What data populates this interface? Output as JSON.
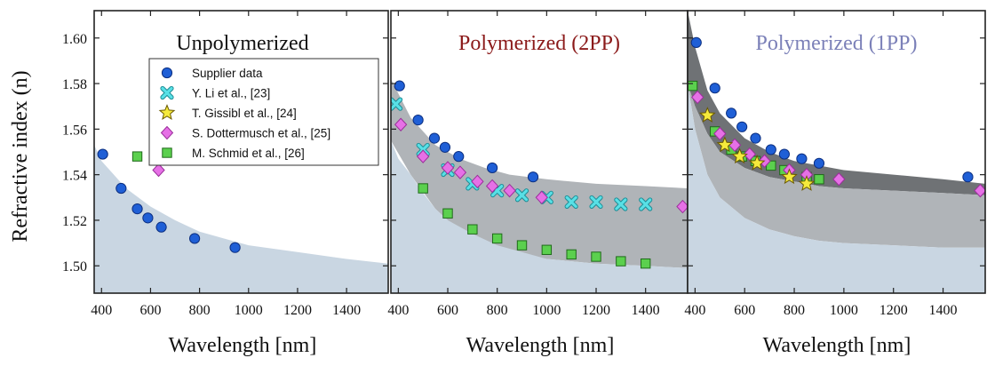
{
  "figure": {
    "ylabel": "Refractive index (n)",
    "xlabel": "Wavelength [nm]"
  },
  "colors": {
    "band_light": "#c9d6e2",
    "band_mid": "#b0b4b8",
    "band_dark": "#6f7275",
    "supplier": "#1f5fd6",
    "li": "#58e0e6",
    "gissibl": "#f5ea3c",
    "dottermusch": "#e670e6",
    "schmid": "#5bd04e",
    "title_unpoly": "#111111",
    "title_2pp": "#8b1a1a",
    "title_1pp": "#7b80b8"
  },
  "legend": {
    "placement": "upper-left of first panel",
    "entries": [
      {
        "key": "supplier",
        "marker": "circle",
        "label": "Supplier data"
      },
      {
        "key": "li",
        "marker": "x",
        "label": "Y. Li et al., [23]"
      },
      {
        "key": "gissibl",
        "marker": "star",
        "label": "T. Gissibl et al., [24]"
      },
      {
        "key": "dottermusch",
        "marker": "diamond",
        "label": "S. Dottermusch et al., [25]"
      },
      {
        "key": "schmid",
        "marker": "square",
        "label": "M. Schmid et al., [26]"
      }
    ]
  },
  "chart_data": [
    {
      "type": "scatter",
      "title": "Unpolymerized",
      "title_color_key": "title_unpoly",
      "xlim": [
        370,
        1570
      ],
      "ylim": [
        1.488,
        1.612
      ],
      "xticks": [
        400,
        600,
        800,
        1000,
        1200,
        1400
      ],
      "yticks": [
        1.5,
        1.52,
        1.54,
        1.56,
        1.58,
        1.6
      ],
      "bands": [
        {
          "color_key": "band_light",
          "x": [
            370,
            400,
            500,
            600,
            700,
            800,
            900,
            1000,
            1200,
            1400,
            1570
          ],
          "upper": [
            1.553,
            1.546,
            1.534,
            1.526,
            1.52,
            1.515,
            1.512,
            1.509,
            1.506,
            1.503,
            1.501
          ],
          "lower": [
            1.488,
            1.488,
            1.488,
            1.488,
            1.488,
            1.488,
            1.488,
            1.488,
            1.488,
            1.488,
            1.488
          ]
        }
      ],
      "series": [
        {
          "name": "Supplier data",
          "key": "supplier",
          "marker": "circle",
          "x": [
            405,
            480,
            546,
            589,
            644,
            780,
            945
          ],
          "y": [
            1.549,
            1.534,
            1.525,
            1.521,
            1.517,
            1.512,
            1.508
          ]
        },
        {
          "name": "S. Dottermusch et al., [25]",
          "key": "dottermusch",
          "marker": "diamond",
          "x": [
            633
          ],
          "y": [
            1.542
          ]
        },
        {
          "name": "M. Schmid et al., [26]",
          "key": "schmid",
          "marker": "square",
          "x": [
            546
          ],
          "y": [
            1.548
          ]
        }
      ]
    },
    {
      "type": "scatter",
      "title": "Polymerized (2PP)",
      "title_color_key": "title_2pp",
      "xlim": [
        370,
        1570
      ],
      "ylim": [
        1.488,
        1.612
      ],
      "xticks": [
        400,
        600,
        800,
        1000,
        1200,
        1400
      ],
      "yticks": [
        1.5,
        1.52,
        1.54,
        1.56,
        1.58,
        1.6
      ],
      "bands": [
        {
          "color_key": "band_mid",
          "x": [
            370,
            450,
            550,
            650,
            750,
            850,
            1000,
            1200,
            1400,
            1570
          ],
          "upper": [
            1.582,
            1.565,
            1.553,
            1.547,
            1.543,
            1.54,
            1.538,
            1.536,
            1.535,
            1.534
          ],
          "lower": [
            1.555,
            1.54,
            1.525,
            1.515,
            1.51,
            1.506,
            1.503,
            1.501,
            1.5,
            1.499
          ]
        },
        {
          "color_key": "band_light",
          "x": [
            370,
            400,
            450,
            500,
            550,
            600,
            700,
            800,
            900,
            1000,
            1200,
            1400,
            1570
          ],
          "upper": [
            1.555,
            1.547,
            1.54,
            1.532,
            1.525,
            1.52,
            1.514,
            1.509,
            1.506,
            1.503,
            1.501,
            1.5,
            1.499
          ],
          "lower": [
            1.488,
            1.488,
            1.488,
            1.488,
            1.488,
            1.488,
            1.488,
            1.488,
            1.488,
            1.488,
            1.488,
            1.488,
            1.488
          ]
        }
      ],
      "series": [
        {
          "name": "Supplier data",
          "key": "supplier",
          "marker": "circle",
          "x": [
            405,
            480,
            546,
            589,
            644,
            780,
            945
          ],
          "y": [
            1.579,
            1.564,
            1.556,
            1.552,
            1.548,
            1.543,
            1.539
          ]
        },
        {
          "name": "Y. Li et al., [23]",
          "key": "li",
          "marker": "x",
          "x": [
            390,
            500,
            600,
            700,
            800,
            900,
            1000,
            1100,
            1200,
            1300,
            1400
          ],
          "y": [
            1.571,
            1.551,
            1.542,
            1.536,
            1.533,
            1.531,
            1.53,
            1.528,
            1.528,
            1.527,
            1.527
          ]
        },
        {
          "name": "S. Dottermusch et al., [25]",
          "key": "dottermusch",
          "marker": "diamond",
          "x": [
            410,
            500,
            600,
            650,
            720,
            780,
            850,
            980,
            1550
          ],
          "y": [
            1.562,
            1.548,
            1.543,
            1.541,
            1.537,
            1.535,
            1.533,
            1.53,
            1.526
          ]
        },
        {
          "name": "M. Schmid et al., [26]",
          "key": "schmid",
          "marker": "square",
          "x": [
            500,
            600,
            700,
            800,
            900,
            1000,
            1100,
            1200,
            1300,
            1400
          ],
          "y": [
            1.534,
            1.523,
            1.516,
            1.512,
            1.509,
            1.507,
            1.505,
            1.504,
            1.502,
            1.501
          ]
        }
      ]
    },
    {
      "type": "scatter",
      "title": "Polymerized (1PP)",
      "title_color_key": "title_1pp",
      "xlim": [
        370,
        1570
      ],
      "ylim": [
        1.488,
        1.612
      ],
      "xticks": [
        400,
        600,
        800,
        1000,
        1200,
        1400
      ],
      "yticks": [
        1.5,
        1.52,
        1.54,
        1.56,
        1.58,
        1.6
      ],
      "bands": [
        {
          "color_key": "band_dark",
          "x": [
            370,
            400,
            450,
            500,
            600,
            700,
            800,
            900,
            1000,
            1200,
            1400,
            1570
          ],
          "upper": [
            1.612,
            1.596,
            1.577,
            1.567,
            1.556,
            1.55,
            1.546,
            1.544,
            1.542,
            1.54,
            1.538,
            1.536
          ],
          "lower": [
            1.58,
            1.57,
            1.558,
            1.55,
            1.543,
            1.539,
            1.537,
            1.535,
            1.534,
            1.533,
            1.532,
            1.531
          ]
        },
        {
          "color_key": "band_mid",
          "x": [
            370,
            400,
            450,
            500,
            600,
            700,
            800,
            900,
            1000,
            1200,
            1400,
            1570
          ],
          "upper": [
            1.58,
            1.57,
            1.558,
            1.55,
            1.543,
            1.539,
            1.537,
            1.535,
            1.534,
            1.533,
            1.532,
            1.531
          ],
          "lower": [
            1.58,
            1.56,
            1.54,
            1.53,
            1.521,
            1.516,
            1.513,
            1.511,
            1.51,
            1.509,
            1.508,
            1.508
          ]
        },
        {
          "color_key": "band_light",
          "x": [
            370,
            400,
            450,
            500,
            600,
            700,
            800,
            900,
            1000,
            1200,
            1400,
            1570
          ],
          "upper": [
            1.58,
            1.56,
            1.54,
            1.53,
            1.521,
            1.516,
            1.513,
            1.511,
            1.51,
            1.509,
            1.508,
            1.508
          ],
          "lower": [
            1.488,
            1.488,
            1.488,
            1.488,
            1.488,
            1.488,
            1.488,
            1.488,
            1.488,
            1.488,
            1.488,
            1.488
          ]
        }
      ],
      "series": [
        {
          "name": "Supplier data",
          "key": "supplier",
          "marker": "circle",
          "x": [
            405,
            480,
            546,
            589,
            644,
            706,
            760,
            830,
            900,
            1500
          ],
          "y": [
            1.598,
            1.578,
            1.567,
            1.561,
            1.556,
            1.551,
            1.549,
            1.547,
            1.545,
            1.539
          ]
        },
        {
          "name": "M. Schmid et al., [26]",
          "key": "schmid",
          "marker": "square",
          "x": [
            390,
            480,
            546,
            589,
            644,
            706,
            760,
            850,
            900
          ],
          "y": [
            1.579,
            1.559,
            1.551,
            1.548,
            1.546,
            1.544,
            1.542,
            1.539,
            1.538
          ]
        },
        {
          "name": "S. Dottermusch et al., [25]",
          "key": "dottermusch",
          "marker": "diamond",
          "x": [
            410,
            500,
            560,
            620,
            680,
            780,
            850,
            980,
            1550
          ],
          "y": [
            1.574,
            1.558,
            1.553,
            1.549,
            1.546,
            1.542,
            1.54,
            1.538,
            1.533
          ]
        },
        {
          "name": "T. Gissibl et al., [24]",
          "key": "gissibl",
          "marker": "star",
          "x": [
            450,
            520,
            580,
            650,
            780,
            850
          ],
          "y": [
            1.566,
            1.553,
            1.548,
            1.545,
            1.539,
            1.536
          ]
        }
      ]
    }
  ]
}
